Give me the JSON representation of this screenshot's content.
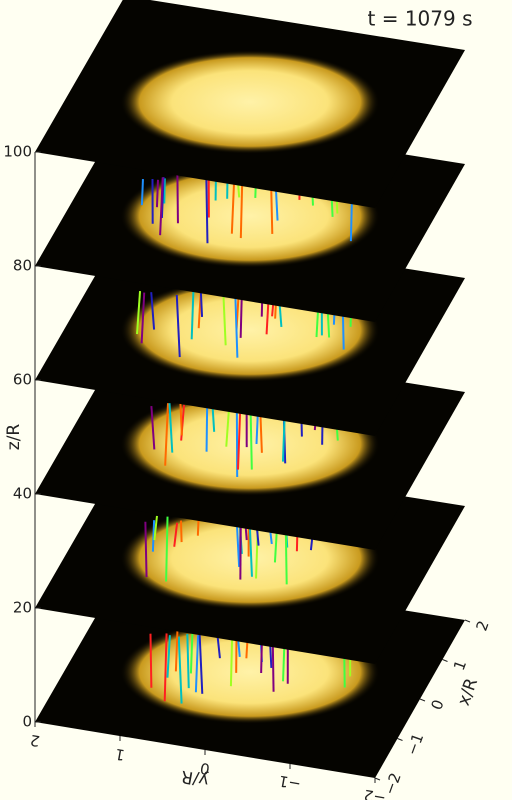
{
  "title": "t = 1079 s",
  "zaxis": {
    "label": "z/R",
    "ticks": [
      0,
      20,
      40,
      60,
      80,
      100
    ]
  },
  "yaxis": {
    "label": "y/R",
    "ticks": [
      2,
      1,
      0,
      {
        "value": -1,
        "label": "−1"
      },
      {
        "value": -2,
        "label": "−2"
      }
    ]
  },
  "xaxis": {
    "label": "x/R",
    "ticks": [
      {
        "value": -2,
        "label": "−2"
      },
      {
        "value": -1,
        "label": "−1"
      },
      0,
      1,
      2
    ]
  }
}
